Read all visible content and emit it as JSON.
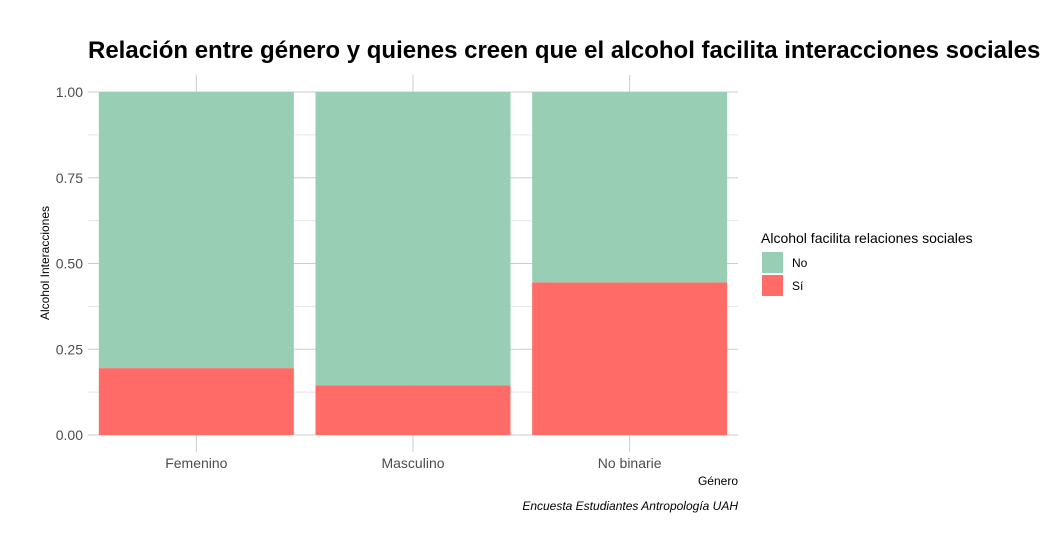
{
  "chart_data": {
    "type": "bar",
    "stacked": true,
    "title": "Relación entre género y quienes creen que el alcohol facilita interacciones sociales",
    "xlabel": "Género",
    "ylabel": "Alcohol Interacciones",
    "caption": "Encuesta Estudiantes Antropología UAH",
    "categories": [
      "Femenino",
      "Masculino",
      "No binarie"
    ],
    "ylim": [
      0,
      1
    ],
    "y_ticks": [
      "0.00",
      "0.25",
      "0.50",
      "0.75",
      "1.00"
    ],
    "grid": true,
    "legend": {
      "title": "Alcohol facilita relaciones sociales",
      "position": "right"
    },
    "series": [
      {
        "name": "No",
        "color": "#97CEB4",
        "values": [
          0.805,
          0.855,
          0.555
        ]
      },
      {
        "name": "Sí",
        "color": "#FF6C67",
        "values": [
          0.195,
          0.145,
          0.445
        ]
      }
    ]
  }
}
